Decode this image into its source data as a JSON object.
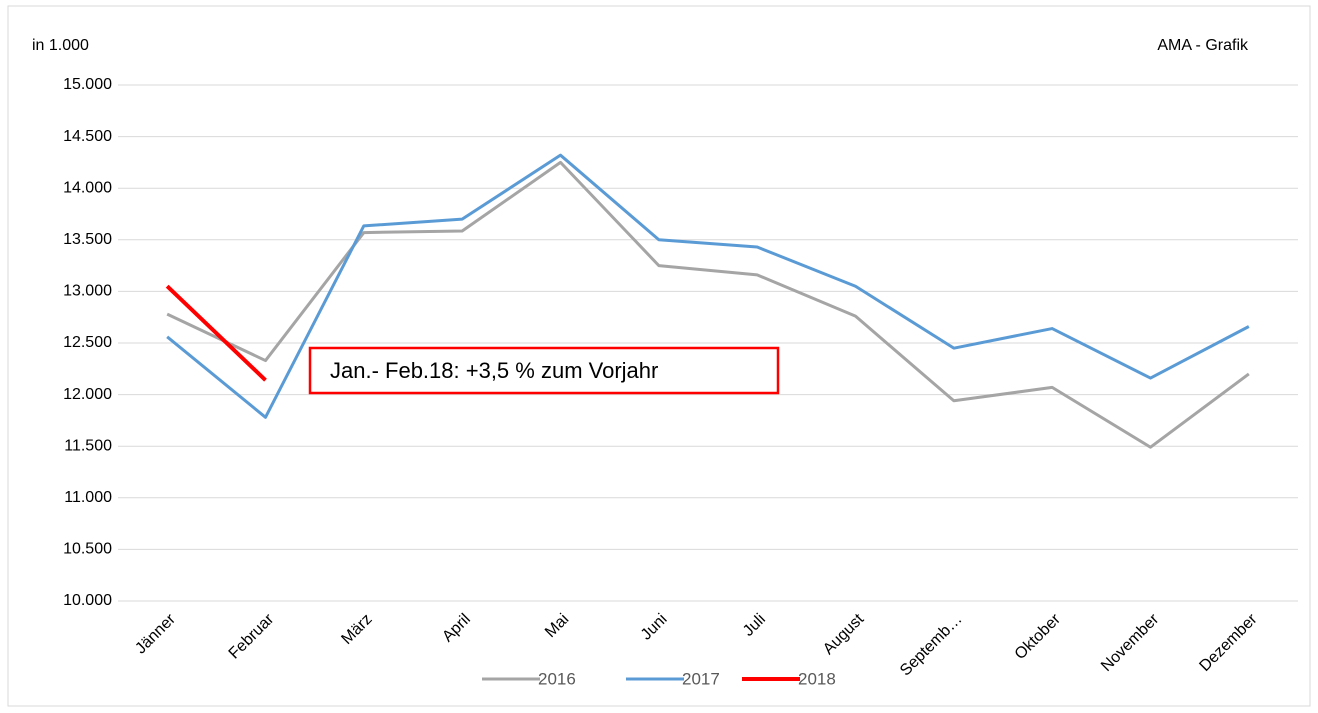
{
  "chart_data": {
    "type": "line",
    "y_unit_label": "in 1.000",
    "source": "AMA - Grafik",
    "annotation": "Jan.- Feb.18: +3,5 % zum Vorjahr",
    "categories": [
      "Jänner",
      "Februar",
      "März",
      "April",
      "Mai",
      "Juni",
      "Juli",
      "August",
      "Septemb…",
      "Oktober",
      "November",
      "Dezember"
    ],
    "series": [
      {
        "name": "2016",
        "color": "#a5a5a5",
        "values": [
          12780,
          12330,
          13570,
          13585,
          14250,
          13250,
          13160,
          12760,
          11940,
          12070,
          11490,
          12200
        ]
      },
      {
        "name": "2017",
        "color": "#5b9bd5",
        "values": [
          12560,
          11780,
          13635,
          13700,
          14320,
          13500,
          13430,
          13050,
          12450,
          12640,
          12160,
          12660
        ]
      },
      {
        "name": "2018",
        "color": "#ff0000",
        "values": [
          13050,
          12140,
          null,
          null,
          null,
          null,
          null,
          null,
          null,
          null,
          null,
          null
        ]
      }
    ],
    "ylim": [
      10000,
      15000
    ],
    "yticks": [
      {
        "value": 10000,
        "label": "10.000"
      },
      {
        "value": 10500,
        "label": "10.500"
      },
      {
        "value": 11000,
        "label": "11.000"
      },
      {
        "value": 11500,
        "label": "11.500"
      },
      {
        "value": 12000,
        "label": "12.000"
      },
      {
        "value": 12500,
        "label": "12.500"
      },
      {
        "value": 13000,
        "label": "13.000"
      },
      {
        "value": 13500,
        "label": "13.500"
      },
      {
        "value": 14000,
        "label": "14.000"
      },
      {
        "value": 14500,
        "label": "14.500"
      },
      {
        "value": 15000,
        "label": "15.000"
      }
    ],
    "grid": true,
    "legend": "bottom"
  }
}
